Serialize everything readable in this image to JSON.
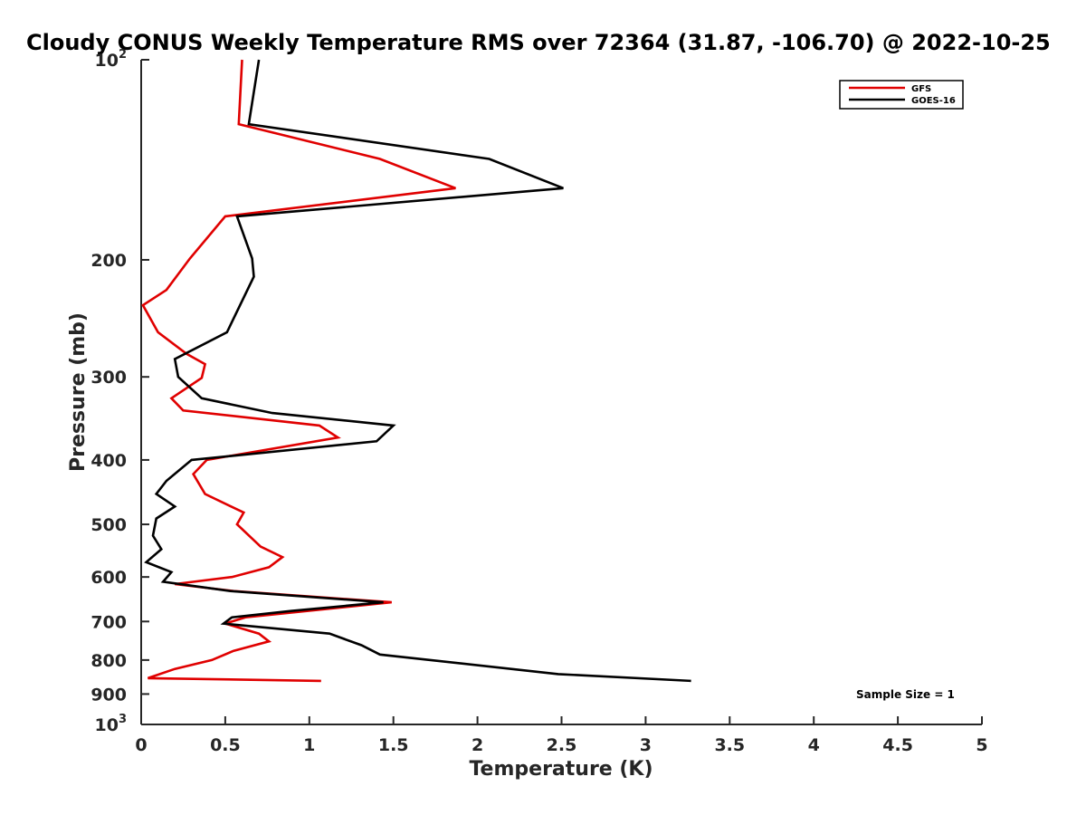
{
  "chart_data": {
    "type": "line",
    "title": "Cloudy CONUS Weekly Temperature RMS over 72364 (31.87, -106.70) @ 2022-10-25",
    "xlabel": "Temperature (K)",
    "ylabel": "Pressure (mb)",
    "xlim": [
      0,
      5
    ],
    "ylim": [
      100,
      1000
    ],
    "y_scale": "log",
    "y_reversed": true,
    "xticks": [
      0,
      0.5,
      1,
      1.5,
      2,
      2.5,
      3,
      3.5,
      4,
      4.5,
      5
    ],
    "xtick_labels": [
      "0",
      "0.5",
      "1",
      "1.5",
      "2",
      "2.5",
      "3",
      "3.5",
      "4",
      "4.5",
      "5"
    ],
    "yticks": [
      {
        "value": 100,
        "base": "10",
        "exp": "2"
      },
      {
        "value": 200,
        "base": "200",
        "exp": ""
      },
      {
        "value": 300,
        "base": "300",
        "exp": ""
      },
      {
        "value": 400,
        "base": "400",
        "exp": ""
      },
      {
        "value": 500,
        "base": "500",
        "exp": ""
      },
      {
        "value": 600,
        "base": "600",
        "exp": ""
      },
      {
        "value": 700,
        "base": "700",
        "exp": ""
      },
      {
        "value": 800,
        "base": "800",
        "exp": ""
      },
      {
        "value": 900,
        "base": "900",
        "exp": ""
      },
      {
        "value": 1000,
        "base": "10",
        "exp": "3"
      }
    ],
    "grid": false,
    "legend_position": "top-right",
    "annotation": "Sample Size = 1",
    "series": [
      {
        "name": "GFS",
        "color": "#e00000",
        "points": [
          [
            0.6,
            100
          ],
          [
            0.58,
            125
          ],
          [
            1.42,
            141
          ],
          [
            1.87,
            156
          ],
          [
            0.5,
            172
          ],
          [
            0.29,
            199
          ],
          [
            0.15,
            222
          ],
          [
            0.01,
            234
          ],
          [
            0.1,
            257
          ],
          [
            0.27,
            277
          ],
          [
            0.38,
            287
          ],
          [
            0.36,
            301
          ],
          [
            0.18,
            323
          ],
          [
            0.25,
            337
          ],
          [
            1.06,
            355
          ],
          [
            1.17,
            370
          ],
          [
            0.39,
            400
          ],
          [
            0.31,
            420
          ],
          [
            0.38,
            450
          ],
          [
            0.61,
            480
          ],
          [
            0.57,
            500
          ],
          [
            0.71,
            540
          ],
          [
            0.84,
            560
          ],
          [
            0.76,
            580
          ],
          [
            0.54,
            600
          ],
          [
            0.2,
            615
          ],
          [
            0.55,
            630
          ],
          [
            1.49,
            655
          ],
          [
            0.62,
            690
          ],
          [
            0.5,
            705
          ],
          [
            0.7,
            730
          ],
          [
            0.76,
            750
          ],
          [
            0.55,
            775
          ],
          [
            0.42,
            800
          ],
          [
            0.2,
            825
          ],
          [
            0.04,
            852
          ],
          [
            1.07,
            860
          ]
        ]
      },
      {
        "name": "GOES-16",
        "color": "#000000",
        "points": [
          [
            0.7,
            100
          ],
          [
            0.64,
            125
          ],
          [
            2.07,
            141
          ],
          [
            2.51,
            156
          ],
          [
            0.57,
            172
          ],
          [
            0.66,
            199
          ],
          [
            0.67,
            212
          ],
          [
            0.51,
            257
          ],
          [
            0.2,
            282
          ],
          [
            0.22,
            300
          ],
          [
            0.36,
            323
          ],
          [
            0.78,
            340
          ],
          [
            1.5,
            355
          ],
          [
            1.4,
            375
          ],
          [
            0.3,
            400
          ],
          [
            0.15,
            430
          ],
          [
            0.09,
            450
          ],
          [
            0.2,
            470
          ],
          [
            0.09,
            490
          ],
          [
            0.07,
            520
          ],
          [
            0.12,
            545
          ],
          [
            0.03,
            570
          ],
          [
            0.18,
            590
          ],
          [
            0.13,
            610
          ],
          [
            0.53,
            630
          ],
          [
            1.44,
            655
          ],
          [
            0.89,
            675
          ],
          [
            0.54,
            690
          ],
          [
            0.49,
            705
          ],
          [
            1.12,
            730
          ],
          [
            1.31,
            760
          ],
          [
            1.42,
            785
          ],
          [
            2.48,
            840
          ],
          [
            3.27,
            860
          ]
        ]
      }
    ]
  }
}
